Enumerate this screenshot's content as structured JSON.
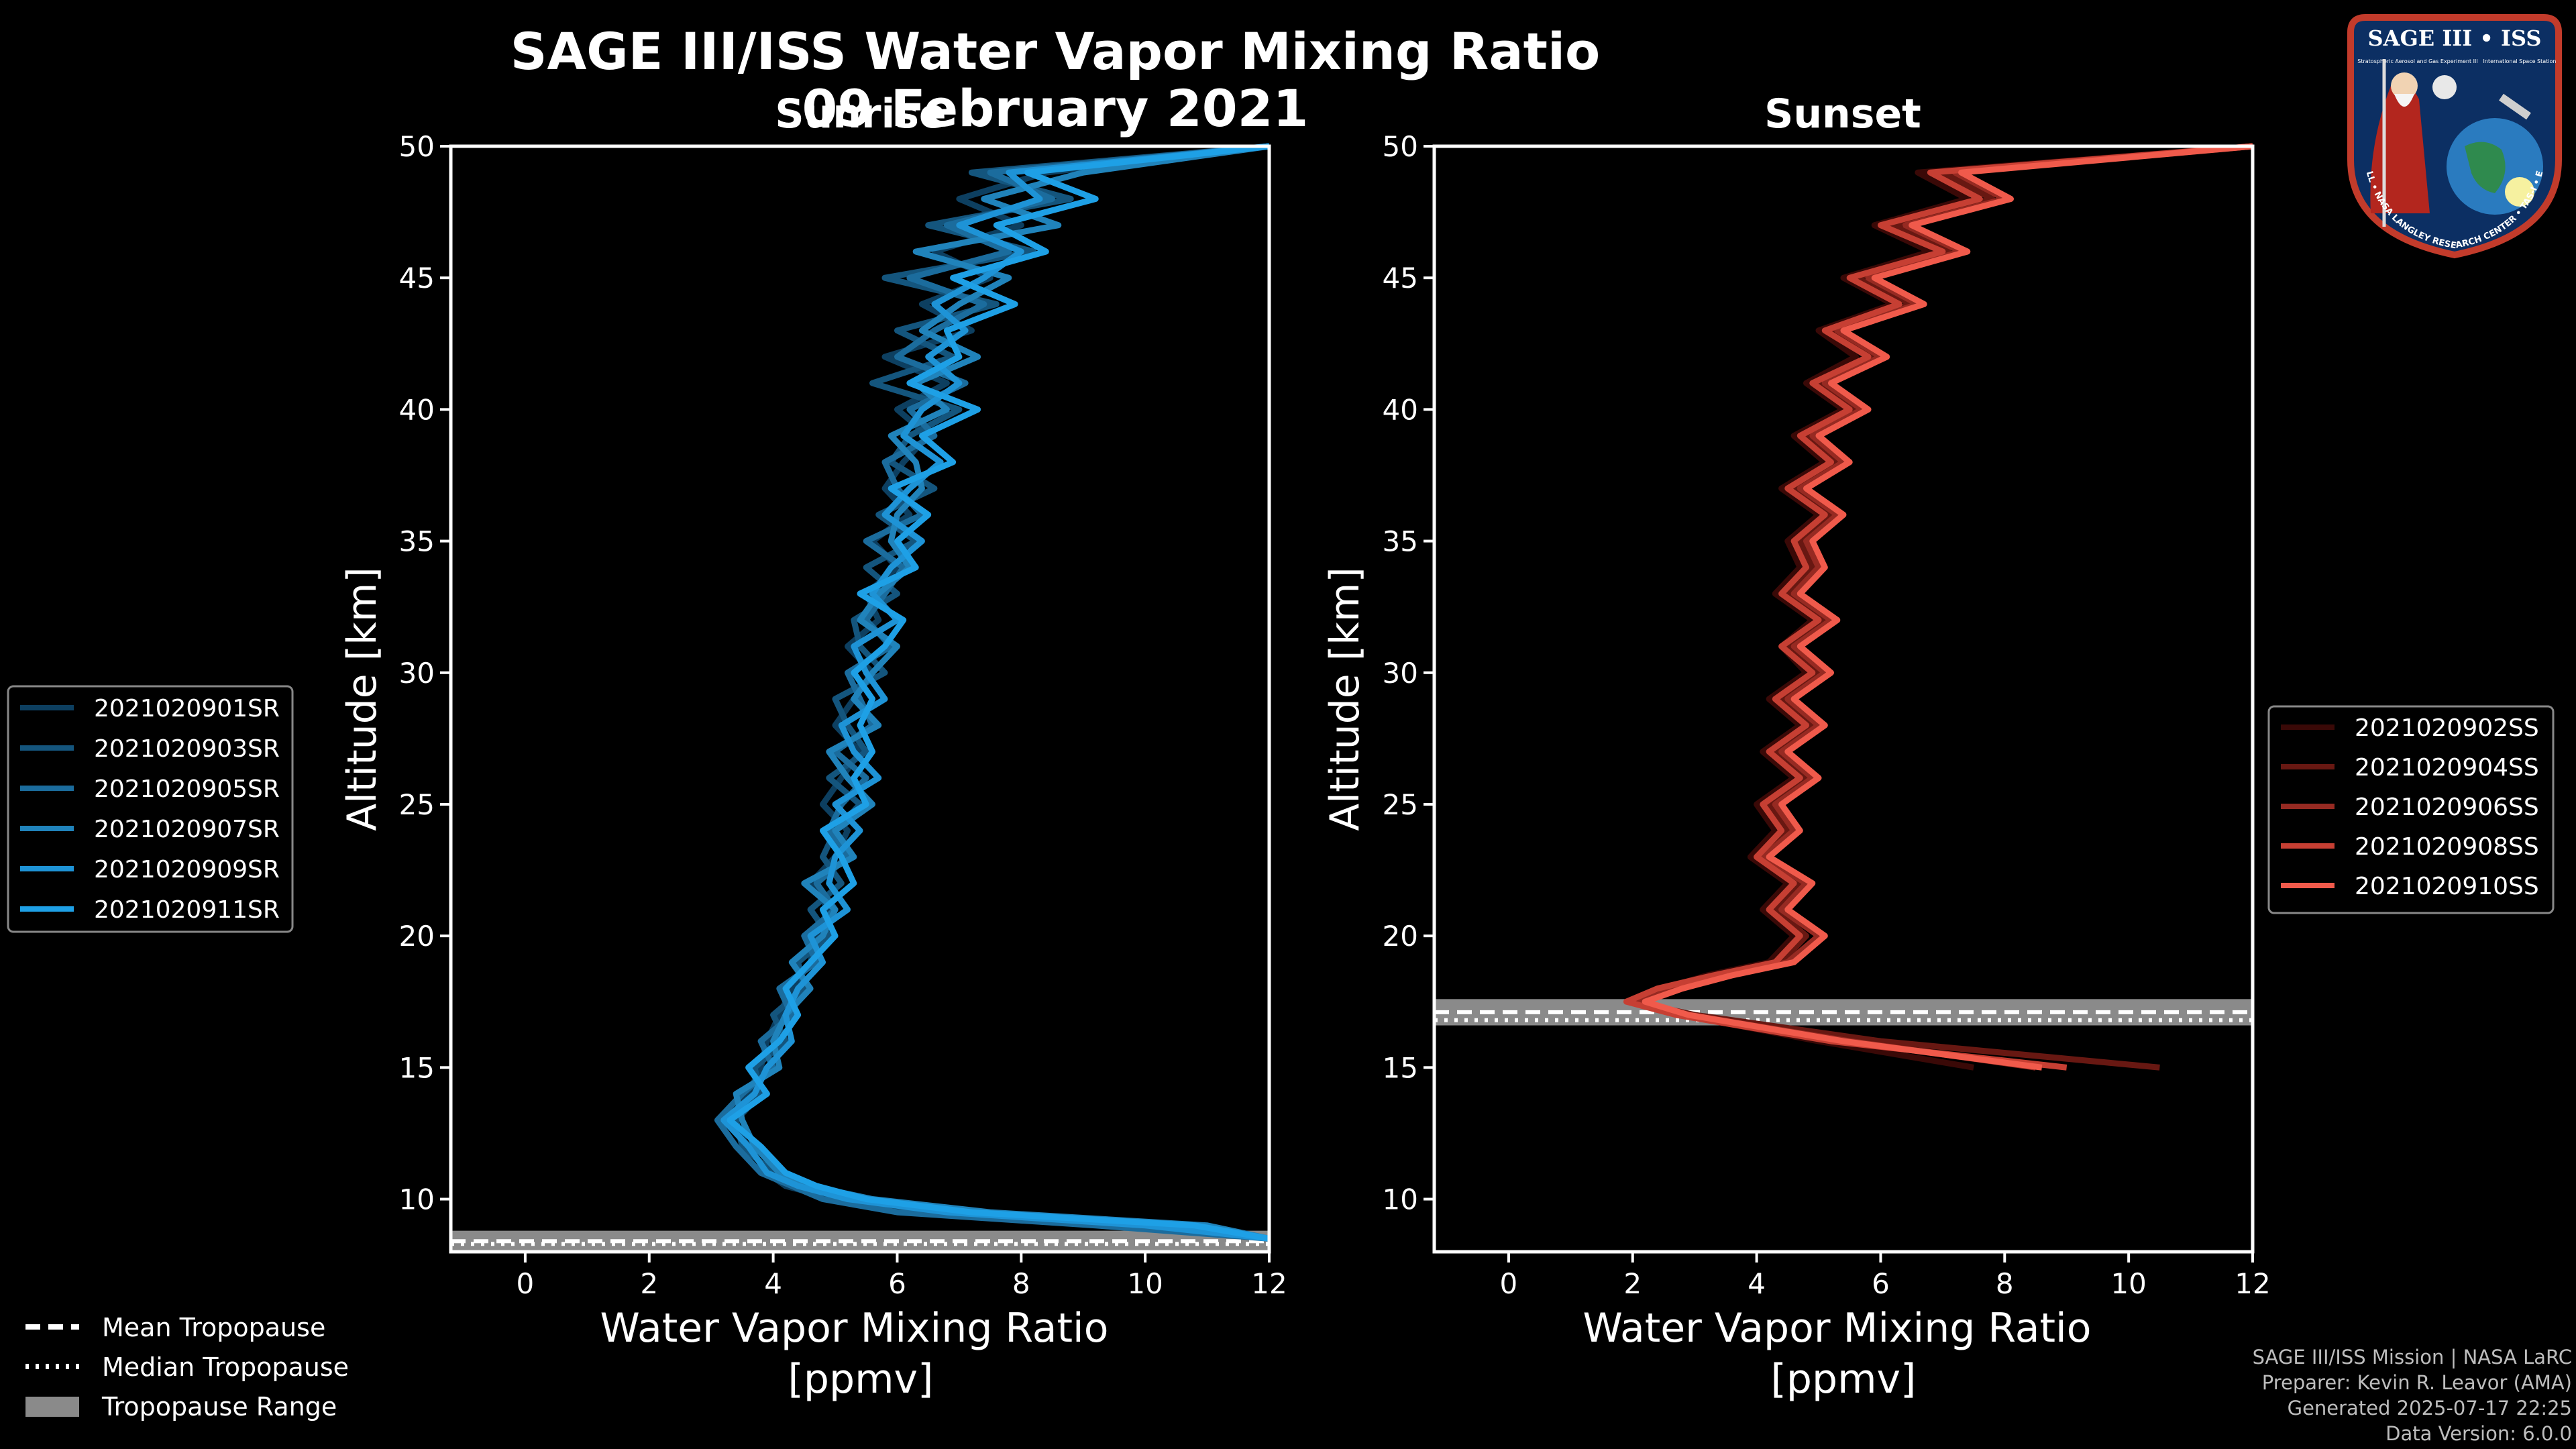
{
  "title": "SAGE III/ISS Water Vapor Mixing Ratio",
  "date": "09 February 2021",
  "colors": {
    "sunrise": "#1ea0e6",
    "sunset": "#f05a4b",
    "tropopause_fill": "#8a8a8a"
  },
  "logo": {
    "line1": "SAGE III • ISS",
    "subtitle": "Stratospheric Aerosol and Gas Experiment III",
    "station": "International Space Station",
    "ring": "BALL • NASA LANGLEY RESEARCH CENTER • TAS-I • ESA"
  },
  "legend_sunrise": [
    "2021020901SR",
    "2021020903SR",
    "2021020905SR",
    "2021020907SR",
    "2021020909SR",
    "2021020911SR"
  ],
  "legend_sunset": [
    "2021020902SS",
    "2021020904SS",
    "2021020906SS",
    "2021020908SS",
    "2021020910SS"
  ],
  "legend_tropopause": {
    "mean": "Mean Tropopause",
    "median": "Median Tropopause",
    "range": "Tropopause Range"
  },
  "credits": {
    "mission": "SAGE III/ISS Mission | NASA LaRC",
    "preparer": "Preparer: Kevin R. Leavor (AMA)",
    "generated": "Generated 2025-07-17 22:25",
    "version": "Data Version: 6.0.0"
  },
  "chart_data": [
    {
      "type": "line",
      "panel": "Sunrise",
      "title": "Sunrise",
      "xlabel": "Water Vapor Mixing Ratio\n[ppmv]",
      "ylabel": "Altitude [km]",
      "xlim": [
        -1.2,
        12
      ],
      "ylim": [
        8,
        50
      ],
      "xticks": [
        0,
        2,
        4,
        6,
        8,
        10,
        12
      ],
      "yticks": [
        10,
        15,
        20,
        25,
        30,
        35,
        40,
        45,
        50
      ],
      "tropopause": {
        "range": [
          8.0,
          8.8
        ],
        "mean": 8.4,
        "median": 8.3
      },
      "series": [
        {
          "name": "2021020901SR",
          "color": "#0d3f60",
          "altitude": [
            8.5,
            9,
            9.5,
            10,
            10.5,
            11,
            12,
            13,
            14,
            15,
            16,
            17,
            18,
            19,
            20,
            21,
            22,
            23,
            24,
            25,
            26,
            27,
            28,
            29,
            30,
            31,
            32,
            33,
            34,
            35,
            36,
            37,
            38,
            39,
            40,
            41,
            42,
            43,
            44,
            45,
            46,
            47,
            48,
            49,
            50
          ],
          "mixing_ratio": [
            12,
            9.8,
            6.5,
            5,
            4.2,
            3.9,
            3.6,
            3.3,
            3.6,
            3.8,
            3.9,
            4.1,
            4.3,
            4.6,
            4.7,
            4.9,
            4.6,
            5.0,
            5.2,
            4.8,
            5.1,
            5.4,
            5.0,
            5.3,
            5.6,
            5.2,
            5.7,
            5.5,
            6.0,
            5.6,
            6.2,
            5.8,
            6.1,
            6.5,
            6.0,
            6.8,
            5.8,
            7.2,
            6.4,
            7.5,
            6.6,
            8.0,
            7.0,
            8.4,
            12
          ]
        },
        {
          "name": "2021020903SR",
          "color": "#14557d",
          "altitude": [
            8.5,
            9,
            9.5,
            10,
            10.5,
            11,
            12,
            13,
            14,
            15,
            16,
            17,
            18,
            19,
            20,
            21,
            22,
            23,
            24,
            25,
            26,
            27,
            28,
            29,
            30,
            31,
            32,
            33,
            34,
            35,
            36,
            37,
            38,
            39,
            40,
            41,
            42,
            43,
            44,
            45,
            46,
            47,
            48,
            49,
            50
          ],
          "mixing_ratio": [
            12,
            10.5,
            7.0,
            5.4,
            4.5,
            4.0,
            3.5,
            3.4,
            3.8,
            3.7,
            4.2,
            4.0,
            4.5,
            4.4,
            4.9,
            4.6,
            5.1,
            4.8,
            5.0,
            5.4,
            4.9,
            5.5,
            5.2,
            5.0,
            5.8,
            5.4,
            5.3,
            6.0,
            5.5,
            6.3,
            5.7,
            6.6,
            5.9,
            6.2,
            7.0,
            5.6,
            6.9,
            6.0,
            7.6,
            5.8,
            8.2,
            6.5,
            8.8,
            7.2,
            12
          ]
        },
        {
          "name": "2021020905SR",
          "color": "#1b6c9d",
          "altitude": [
            8.5,
            9,
            9.5,
            10,
            10.5,
            11,
            12,
            13,
            14,
            15,
            16,
            17,
            18,
            19,
            20,
            21,
            22,
            23,
            24,
            25,
            26,
            27,
            28,
            29,
            30,
            31,
            32,
            33,
            34,
            35,
            36,
            37,
            38,
            39,
            40,
            41,
            42,
            43,
            44,
            45,
            46,
            47,
            48,
            49,
            50
          ],
          "mixing_ratio": [
            12,
            9.2,
            6.0,
            4.8,
            4.3,
            3.8,
            3.4,
            3.1,
            3.5,
            4.0,
            3.8,
            4.3,
            4.1,
            4.7,
            4.5,
            5.0,
            4.7,
            5.2,
            4.9,
            5.1,
            5.5,
            5.0,
            5.6,
            5.4,
            5.2,
            5.9,
            5.5,
            5.8,
            6.1,
            5.5,
            6.4,
            6.0,
            5.8,
            6.6,
            6.2,
            7.1,
            6.0,
            6.6,
            7.4,
            6.2,
            7.8,
            6.8,
            8.5,
            7.5,
            12
          ]
        },
        {
          "name": "2021020907SR",
          "color": "#2083bb",
          "altitude": [
            8.5,
            9,
            9.5,
            10,
            10.5,
            11,
            12,
            13,
            14,
            15,
            16,
            17,
            18,
            19,
            20,
            21,
            22,
            23,
            24,
            25,
            26,
            27,
            28,
            29,
            30,
            31,
            32,
            33,
            34,
            35,
            36,
            37,
            38,
            39,
            40,
            41,
            42,
            43,
            44,
            45,
            46,
            47,
            48,
            49,
            50
          ],
          "mixing_ratio": [
            12,
            11.0,
            7.5,
            5.6,
            4.6,
            4.1,
            3.7,
            3.5,
            3.4,
            4.1,
            4.0,
            4.2,
            4.6,
            4.3,
            4.8,
            5.0,
            4.5,
            5.3,
            5.0,
            5.6,
            5.2,
            4.9,
            5.7,
            5.3,
            5.6,
            6.0,
            5.4,
            5.7,
            6.2,
            5.9,
            6.0,
            6.4,
            6.3,
            5.9,
            6.8,
            6.3,
            7.3,
            6.4,
            7.0,
            7.8,
            6.3,
            8.6,
            7.4,
            9.0,
            12
          ]
        },
        {
          "name": "2021020909SR",
          "color": "#1e93d6",
          "altitude": [
            8.5,
            9,
            9.5,
            10,
            10.5,
            11,
            12,
            13,
            14,
            15,
            16,
            17,
            18,
            19,
            20,
            21,
            22,
            23,
            24,
            25,
            26,
            27,
            28,
            29,
            30,
            31,
            32,
            33,
            34,
            35,
            36,
            37,
            38,
            39,
            40,
            41,
            42,
            43,
            44,
            45,
            46,
            47,
            48,
            49,
            50
          ],
          "mixing_ratio": [
            12,
            10.0,
            6.8,
            5.2,
            4.4,
            3.9,
            3.6,
            3.2,
            3.7,
            3.9,
            4.3,
            4.2,
            4.4,
            4.8,
            4.6,
            5.2,
            4.9,
            5.0,
            5.4,
            5.0,
            5.7,
            5.3,
            5.1,
            5.8,
            5.5,
            5.3,
            6.0,
            5.6,
            5.9,
            6.4,
            5.8,
            6.2,
            6.7,
            6.1,
            6.4,
            7.0,
            6.5,
            7.1,
            6.6,
            7.4,
            8.0,
            7.0,
            8.3,
            7.8,
            12
          ]
        },
        {
          "name": "2021020911SR",
          "color": "#1ea0e6",
          "altitude": [
            8.5,
            9,
            9.5,
            10,
            10.5,
            11,
            12,
            13,
            14,
            15,
            16,
            17,
            18,
            19,
            20,
            21,
            22,
            23,
            24,
            25,
            26,
            27,
            28,
            29,
            30,
            31,
            32,
            33,
            34,
            35,
            36,
            37,
            38,
            39,
            40,
            41,
            42,
            43,
            44,
            45,
            46,
            47,
            48,
            49,
            50
          ],
          "mixing_ratio": [
            12,
            10.8,
            7.2,
            5.5,
            4.7,
            4.2,
            3.8,
            3.3,
            3.9,
            3.6,
            4.1,
            4.4,
            4.2,
            4.6,
            5.0,
            4.8,
            5.3,
            5.1,
            4.8,
            5.5,
            5.3,
            5.6,
            5.4,
            5.6,
            5.3,
            5.8,
            6.1,
            5.4,
            6.3,
            6.0,
            6.5,
            5.9,
            6.9,
            6.4,
            7.3,
            6.2,
            7.0,
            6.8,
            7.9,
            6.9,
            8.4,
            7.6,
            9.2,
            8.1,
            12
          ]
        }
      ]
    },
    {
      "type": "line",
      "panel": "Sunset",
      "title": "Sunset",
      "xlabel": "Water Vapor Mixing Ratio\n[ppmv]",
      "ylabel": "Altitude [km]",
      "xlim": [
        -1.2,
        12
      ],
      "ylim": [
        8,
        50
      ],
      "xticks": [
        0,
        2,
        4,
        6,
        8,
        10,
        12
      ],
      "yticks": [
        10,
        15,
        20,
        25,
        30,
        35,
        40,
        45,
        50
      ],
      "tropopause": {
        "range": [
          16.6,
          17.6
        ],
        "mean": 17.1,
        "median": 16.8
      },
      "series": [
        {
          "name": "2021020902SS",
          "color": "#3a0907",
          "altitude": [
            15,
            16,
            17,
            17.5,
            18,
            18.5,
            19,
            20,
            21,
            22,
            23,
            24,
            25,
            26,
            27,
            28,
            29,
            30,
            31,
            32,
            33,
            34,
            35,
            36,
            37,
            38,
            39,
            40,
            41,
            42,
            43,
            44,
            45,
            46,
            47,
            48,
            49,
            50
          ],
          "mixing_ratio": [
            7.5,
            5.0,
            2.8,
            2.2,
            2.5,
            3.2,
            4.2,
            4.6,
            4.1,
            4.5,
            3.9,
            4.3,
            4.0,
            4.6,
            4.1,
            4.7,
            4.2,
            4.8,
            4.4,
            4.9,
            4.3,
            4.7,
            4.5,
            5.0,
            4.4,
            5.1,
            4.6,
            5.4,
            4.8,
            5.6,
            5.0,
            6.2,
            5.4,
            6.8,
            5.9,
            7.4,
            6.6,
            12
          ]
        },
        {
          "name": "2021020904SS",
          "color": "#681812",
          "altitude": [
            15,
            16,
            17,
            17.5,
            18,
            18.5,
            19,
            20,
            21,
            22,
            23,
            24,
            25,
            26,
            27,
            28,
            29,
            30,
            31,
            32,
            33,
            34,
            35,
            36,
            37,
            38,
            39,
            40,
            41,
            42,
            43,
            44,
            45,
            46,
            47,
            48,
            49,
            50
          ],
          "mixing_ratio": [
            10.5,
            6.0,
            3.0,
            2.0,
            2.6,
            3.4,
            4.4,
            4.8,
            4.3,
            4.7,
            4.0,
            4.5,
            4.2,
            4.8,
            4.3,
            4.9,
            4.4,
            5.0,
            4.5,
            5.1,
            4.5,
            4.9,
            4.7,
            5.2,
            4.6,
            5.3,
            4.8,
            5.6,
            5.0,
            5.9,
            5.2,
            6.5,
            5.6,
            7.1,
            6.2,
            7.8,
            7.0,
            12
          ]
        },
        {
          "name": "2021020906SS",
          "color": "#962a22",
          "altitude": [
            15,
            16,
            17,
            17.5,
            18,
            18.5,
            19,
            20,
            21,
            22,
            23,
            24,
            25,
            26,
            27,
            28,
            29,
            30,
            31,
            32,
            33,
            34,
            35,
            36,
            37,
            38,
            39,
            40,
            41,
            42,
            43,
            44,
            45,
            46,
            47,
            48,
            49,
            50
          ],
          "mixing_ratio": [
            8.5,
            5.5,
            2.9,
            2.1,
            2.7,
            3.5,
            4.5,
            5.0,
            4.4,
            4.8,
            4.1,
            4.6,
            4.3,
            4.9,
            4.4,
            5.0,
            4.5,
            5.1,
            4.6,
            5.2,
            4.6,
            5.0,
            4.8,
            5.3,
            4.7,
            5.4,
            4.9,
            5.7,
            5.1,
            6.0,
            5.3,
            6.6,
            5.8,
            7.3,
            6.4,
            8.0,
            7.2,
            12
          ]
        },
        {
          "name": "2021020908SS",
          "color": "#c63f33",
          "altitude": [
            15,
            16,
            17,
            17.5,
            18,
            18.5,
            19,
            20,
            21,
            22,
            23,
            24,
            25,
            26,
            27,
            28,
            29,
            30,
            31,
            32,
            33,
            34,
            35,
            36,
            37,
            38,
            39,
            40,
            41,
            42,
            43,
            44,
            45,
            46,
            47,
            48,
            49,
            50
          ],
          "mixing_ratio": [
            9.0,
            5.2,
            2.7,
            1.9,
            2.4,
            3.3,
            4.3,
            4.7,
            4.2,
            4.6,
            4.0,
            4.4,
            4.1,
            4.7,
            4.2,
            4.8,
            4.3,
            4.9,
            4.4,
            5.0,
            4.4,
            4.8,
            4.6,
            5.1,
            4.5,
            5.2,
            4.7,
            5.5,
            4.9,
            5.8,
            5.1,
            6.3,
            5.5,
            7.0,
            6.0,
            7.6,
            6.8,
            12
          ]
        },
        {
          "name": "2021020910SS",
          "color": "#f05a4b",
          "altitude": [
            15,
            16,
            17,
            17.5,
            18,
            18.5,
            19,
            20,
            21,
            22,
            23,
            24,
            25,
            26,
            27,
            28,
            29,
            30,
            31,
            32,
            33,
            34,
            35,
            36,
            37,
            38,
            39,
            40,
            41,
            42,
            43,
            44,
            45,
            46,
            47,
            48,
            49,
            50
          ],
          "mixing_ratio": [
            8.6,
            5.4,
            2.9,
            2.2,
            2.8,
            3.6,
            4.6,
            5.1,
            4.5,
            4.9,
            4.2,
            4.7,
            4.4,
            5.0,
            4.5,
            5.1,
            4.6,
            5.2,
            4.7,
            5.3,
            4.7,
            5.1,
            4.9,
            5.4,
            4.8,
            5.5,
            5.0,
            5.8,
            5.2,
            6.1,
            5.4,
            6.7,
            5.9,
            7.4,
            6.5,
            8.1,
            7.3,
            12
          ]
        }
      ]
    }
  ]
}
